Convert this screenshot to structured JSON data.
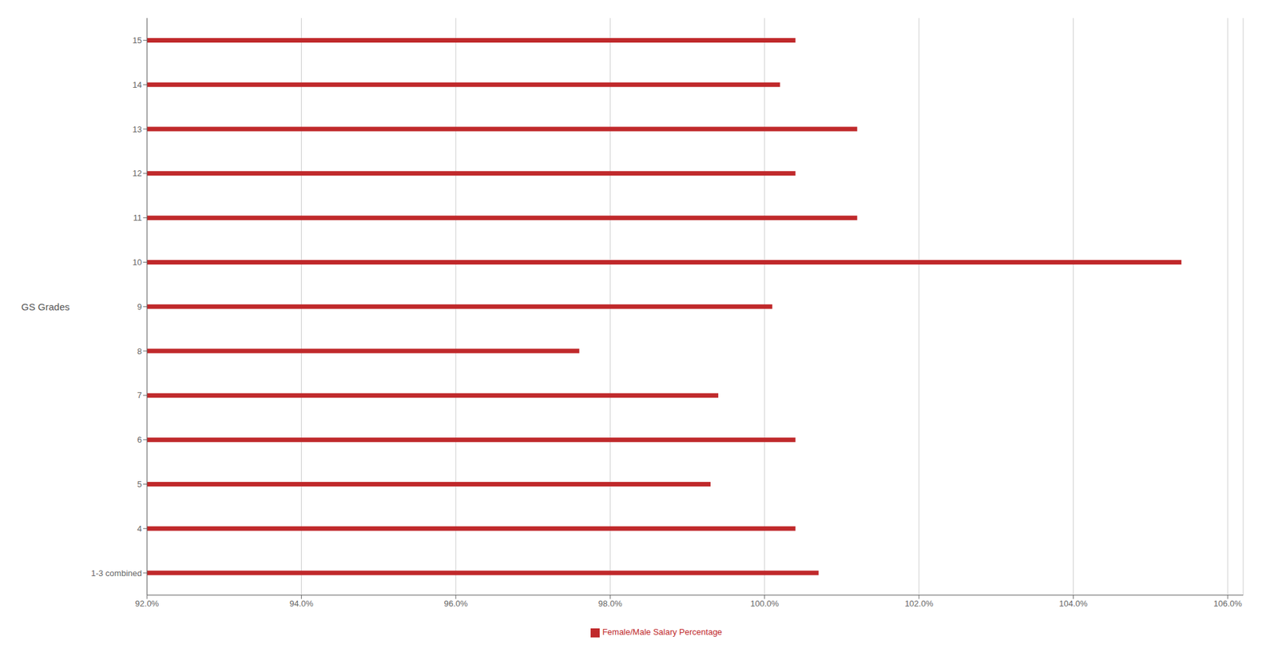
{
  "chart_data": {
    "type": "bar",
    "orientation": "horizontal",
    "y_label": "GS Grades",
    "categories": [
      "1-3 combined",
      "4",
      "5",
      "6",
      "7",
      "8",
      "9",
      "10",
      "11",
      "12",
      "13",
      "14",
      "15"
    ],
    "series": [
      {
        "name": "Female/Male Salary Percentage",
        "color": "#C0292B",
        "values": [
          100.7,
          100.4,
          99.3,
          100.4,
          99.4,
          97.6,
          100.1,
          105.4,
          101.2,
          100.4,
          101.2,
          100.2,
          100.4
        ]
      }
    ],
    "xlim": [
      92.0,
      106.2
    ],
    "xticks": [
      {
        "value": 92.0,
        "label": "92.0%"
      },
      {
        "value": 94.0,
        "label": "94.0%"
      },
      {
        "value": 96.0,
        "label": "96.0%"
      },
      {
        "value": 98.0,
        "label": "98.0%"
      },
      {
        "value": 100.0,
        "label": "100.0%"
      },
      {
        "value": 102.0,
        "label": "102.0%"
      },
      {
        "value": 104.0,
        "label": "104.0%"
      },
      {
        "value": 106.0,
        "label": "106.0%"
      }
    ],
    "grid": true,
    "legend": "bottom"
  }
}
